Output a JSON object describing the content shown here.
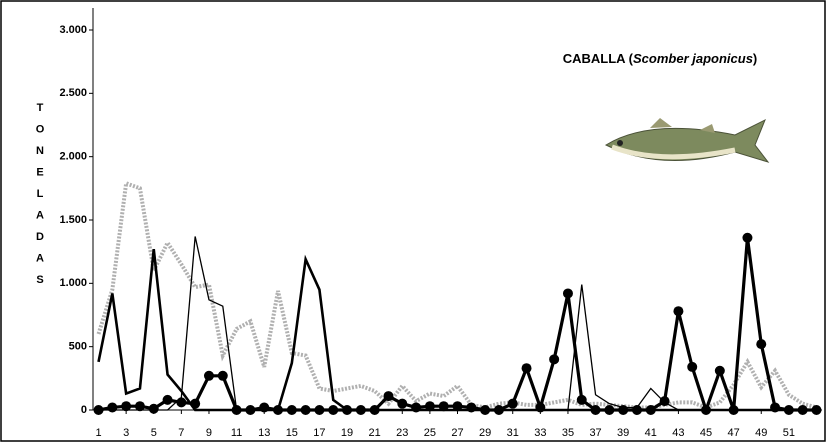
{
  "chart_data": {
    "type": "line",
    "title": [
      "CABALLA (",
      "Scomber japonicus",
      ")"
    ],
    "y_label": "TONELADAS",
    "x": [
      1,
      2,
      3,
      4,
      5,
      6,
      7,
      8,
      9,
      10,
      11,
      12,
      13,
      14,
      15,
      16,
      17,
      18,
      19,
      20,
      21,
      22,
      23,
      24,
      25,
      26,
      27,
      28,
      29,
      30,
      31,
      32,
      33,
      34,
      35,
      36,
      37,
      38,
      39,
      40,
      41,
      42,
      43,
      44,
      45,
      46,
      47,
      48,
      49,
      50,
      51,
      52,
      53
    ],
    "xlim": [
      0.6,
      53.4
    ],
    "xticks": [
      1,
      3,
      5,
      7,
      9,
      11,
      13,
      15,
      17,
      19,
      21,
      23,
      25,
      27,
      29,
      31,
      33,
      35,
      37,
      39,
      41,
      43,
      45,
      47,
      49,
      51
    ],
    "ylim": [
      0,
      3000
    ],
    "yticks": [
      0,
      500,
      {
        "value": 1000,
        "label": "1.000"
      },
      {
        "value": 1500,
        "label": "1.500"
      },
      {
        "value": 2000,
        "label": "2.000"
      },
      {
        "value": 2500,
        "label": "2.500"
      },
      {
        "value": 3000,
        "label": "3.000"
      }
    ],
    "series": [
      {
        "color": "#b0b0b0",
        "style": "dotted",
        "values": [
          600,
          950,
          1790,
          1750,
          1100,
          1320,
          1150,
          970,
          990,
          430,
          640,
          700,
          340,
          940,
          450,
          430,
          170,
          150,
          170,
          190,
          150,
          50,
          190,
          70,
          130,
          110,
          190,
          40,
          20,
          50,
          60,
          40,
          40,
          60,
          80,
          40,
          50,
          40,
          30,
          20,
          20,
          40,
          60,
          60,
          20,
          60,
          200,
          380,
          180,
          310,
          120,
          50,
          20
        ]
      },
      {
        "color": "#000000",
        "style": "thin",
        "values": [
          0,
          0,
          0,
          0,
          0,
          0,
          100,
          1370,
          870,
          820,
          0,
          0,
          0,
          0,
          0,
          0,
          0,
          0,
          0,
          0,
          0,
          0,
          0,
          0,
          0,
          0,
          0,
          0,
          0,
          0,
          0,
          0,
          0,
          0,
          0,
          990,
          120,
          50,
          20,
          20,
          170,
          60,
          0,
          0,
          0,
          0,
          0,
          0,
          0,
          0,
          0,
          0,
          0
        ]
      },
      {
        "color": "#000000",
        "style": "thick",
        "values": [
          380,
          920,
          130,
          170,
          1270,
          280,
          150,
          0,
          0,
          0,
          0,
          0,
          0,
          0,
          370,
          1190,
          950,
          80,
          0,
          0,
          0,
          0,
          0,
          0,
          0,
          0,
          0,
          0,
          0,
          0,
          0,
          0,
          0,
          0,
          0,
          0,
          0,
          0,
          0,
          0,
          0,
          0,
          0,
          0,
          0,
          0,
          0,
          0,
          0,
          0,
          0,
          0,
          0
        ]
      },
      {
        "color": "#000000",
        "style": "markers",
        "values": [
          0,
          20,
          30,
          30,
          10,
          80,
          60,
          50,
          270,
          270,
          0,
          0,
          20,
          0,
          0,
          0,
          0,
          0,
          0,
          0,
          0,
          110,
          50,
          20,
          30,
          30,
          30,
          20,
          0,
          0,
          50,
          330,
          20,
          400,
          920,
          80,
          0,
          0,
          0,
          0,
          0,
          70,
          780,
          340,
          0,
          310,
          0,
          1360,
          520,
          20,
          0,
          0,
          0
        ]
      }
    ]
  }
}
